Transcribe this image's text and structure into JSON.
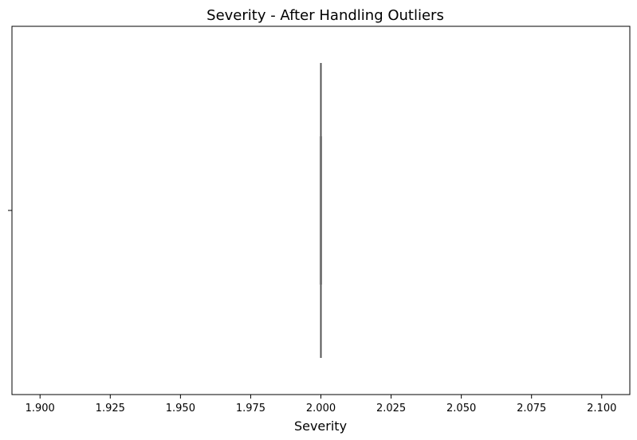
{
  "chart_data": {
    "type": "boxplot",
    "title": "Severity - After Handling Outliers",
    "xlabel": "Severity",
    "ylabel": "",
    "xlim": [
      1.89,
      2.11
    ],
    "x_ticks": [
      "1.900",
      "1.925",
      "1.950",
      "1.975",
      "2.000",
      "2.025",
      "2.050",
      "2.075",
      "2.100"
    ],
    "x_tick_values": [
      1.9,
      1.925,
      1.95,
      1.975,
      2.0,
      2.025,
      2.05,
      2.075,
      2.1
    ],
    "orientation": "horizontal",
    "box": {
      "min": 2.0,
      "q1": 2.0,
      "median": 2.0,
      "q3": 2.0,
      "max": 2.0
    },
    "grid": false,
    "colors": {
      "box_line": "#555555",
      "axes": "#000000"
    }
  }
}
